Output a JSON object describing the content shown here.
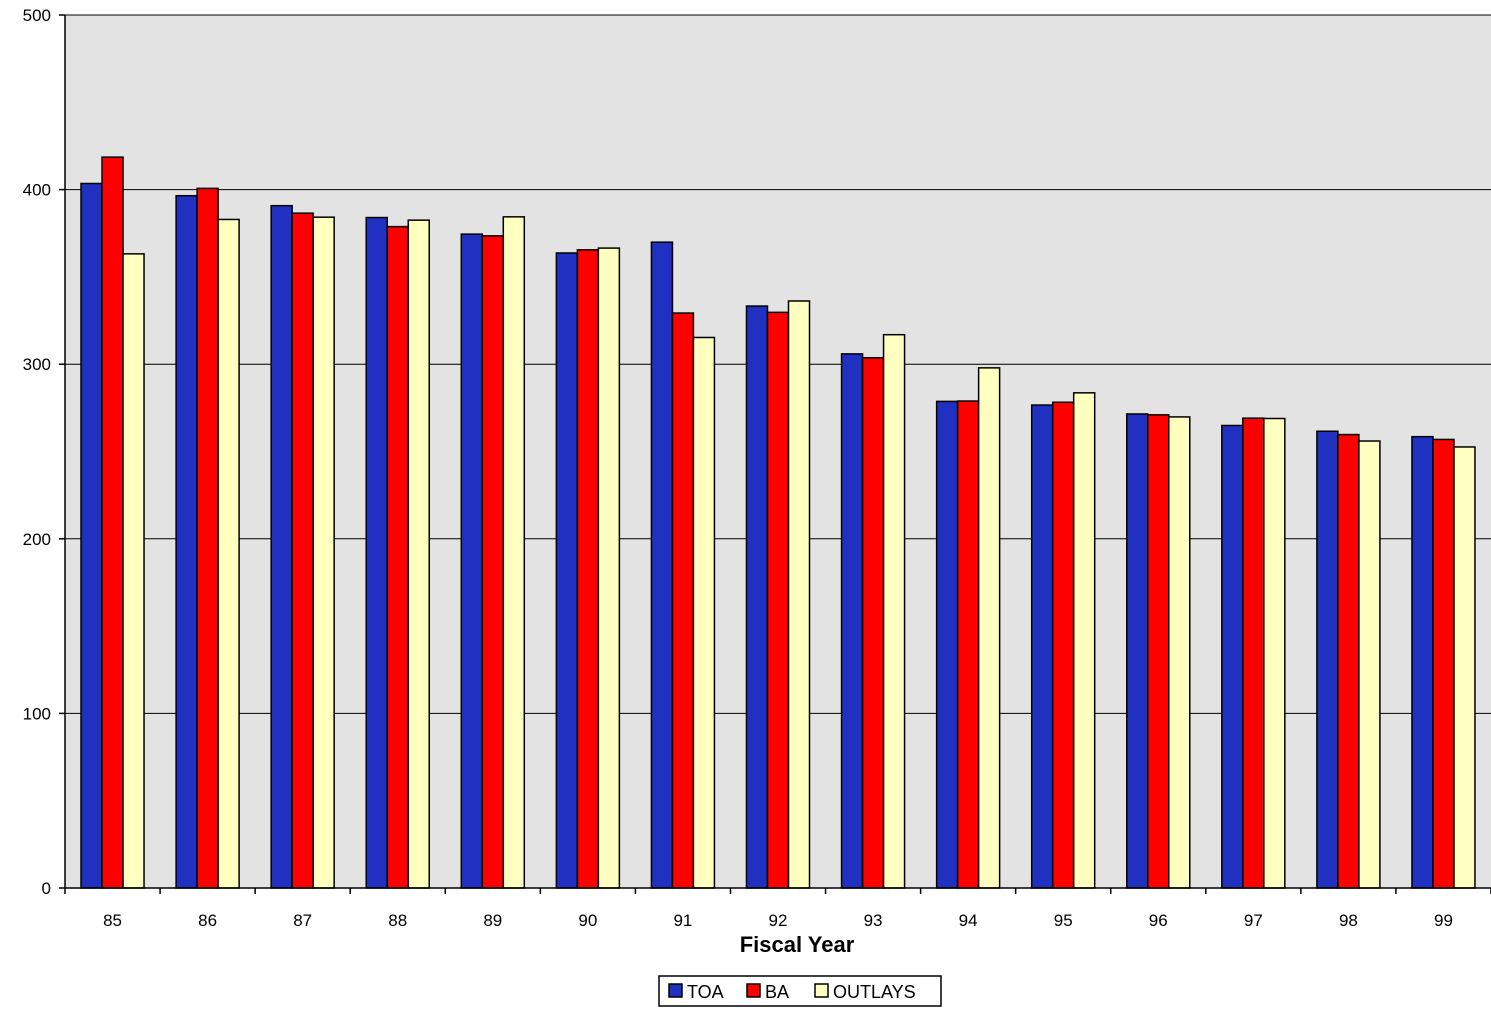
{
  "chart_data": {
    "type": "bar",
    "title": "",
    "xlabel": "Fiscal Year",
    "ylabel": "",
    "ylim": [
      0,
      500
    ],
    "yticks": [
      0,
      100,
      200,
      300,
      400,
      500
    ],
    "grid": true,
    "legend_position": "bottom",
    "plot_background": "#e3e3e3",
    "categories": [
      "85",
      "86",
      "87",
      "88",
      "89",
      "90",
      "91",
      "92",
      "93",
      "94",
      "95",
      "96",
      "97",
      "98",
      "99"
    ],
    "series": [
      {
        "name": "TOA",
        "color": "#2030c0",
        "values": [
          403.5,
          396.5,
          390.8,
          384.0,
          374.5,
          363.7,
          369.9,
          333.3,
          305.9,
          278.7,
          276.6,
          271.5,
          264.9,
          261.6,
          258.5
        ]
      },
      {
        "name": "BA",
        "color": "#ff0000",
        "values": [
          418.6,
          400.7,
          386.5,
          378.8,
          373.5,
          365.5,
          329.3,
          329.7,
          303.7,
          278.9,
          278.2,
          271.0,
          269.1,
          259.7,
          256.9
        ]
      },
      {
        "name": "OUTLAYS",
        "color": "#ffffc0",
        "values": [
          363.2,
          382.9,
          384.2,
          382.5,
          384.4,
          366.5,
          315.3,
          336.2,
          316.9,
          297.9,
          283.6,
          269.8,
          268.9,
          256.0,
          252.6
        ]
      }
    ]
  }
}
